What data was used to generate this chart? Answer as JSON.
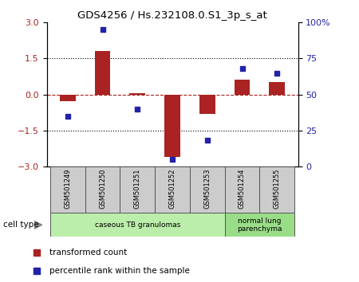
{
  "title": "GDS4256 / Hs.232108.0.S1_3p_s_at",
  "samples": [
    "GSM501249",
    "GSM501250",
    "GSM501251",
    "GSM501252",
    "GSM501253",
    "GSM501254",
    "GSM501255"
  ],
  "transformed_count": [
    -0.28,
    1.82,
    0.05,
    -2.62,
    -0.82,
    0.62,
    0.52
  ],
  "percentile_rank": [
    35,
    95,
    40,
    5,
    18,
    68,
    65
  ],
  "bar_color": "#aa2222",
  "dot_color": "#2222aa",
  "left_ylim": [
    -3,
    3
  ],
  "right_ylim": [
    0,
    100
  ],
  "left_yticks": [
    -3,
    -1.5,
    0,
    1.5,
    3
  ],
  "right_yticks": [
    0,
    25,
    50,
    75,
    100
  ],
  "right_yticklabels": [
    "0",
    "25",
    "50",
    "75",
    "100%"
  ],
  "hline_dotted": [
    -1.5,
    1.5
  ],
  "hline_dashed_red": 0,
  "groups": [
    {
      "label": "caseous TB granulomas",
      "start": 0,
      "end": 4,
      "color": "#bbeeaa"
    },
    {
      "label": "normal lung\nparenchyma",
      "start": 5,
      "end": 6,
      "color": "#99dd88"
    }
  ],
  "cell_type_label": "cell type",
  "legend_items": [
    {
      "label": "transformed count",
      "color": "#aa2222",
      "marker": "s"
    },
    {
      "label": "percentile rank within the sample",
      "color": "#2222aa",
      "marker": "s"
    }
  ],
  "background_color": "#ffffff",
  "plot_bg": "#ffffff"
}
